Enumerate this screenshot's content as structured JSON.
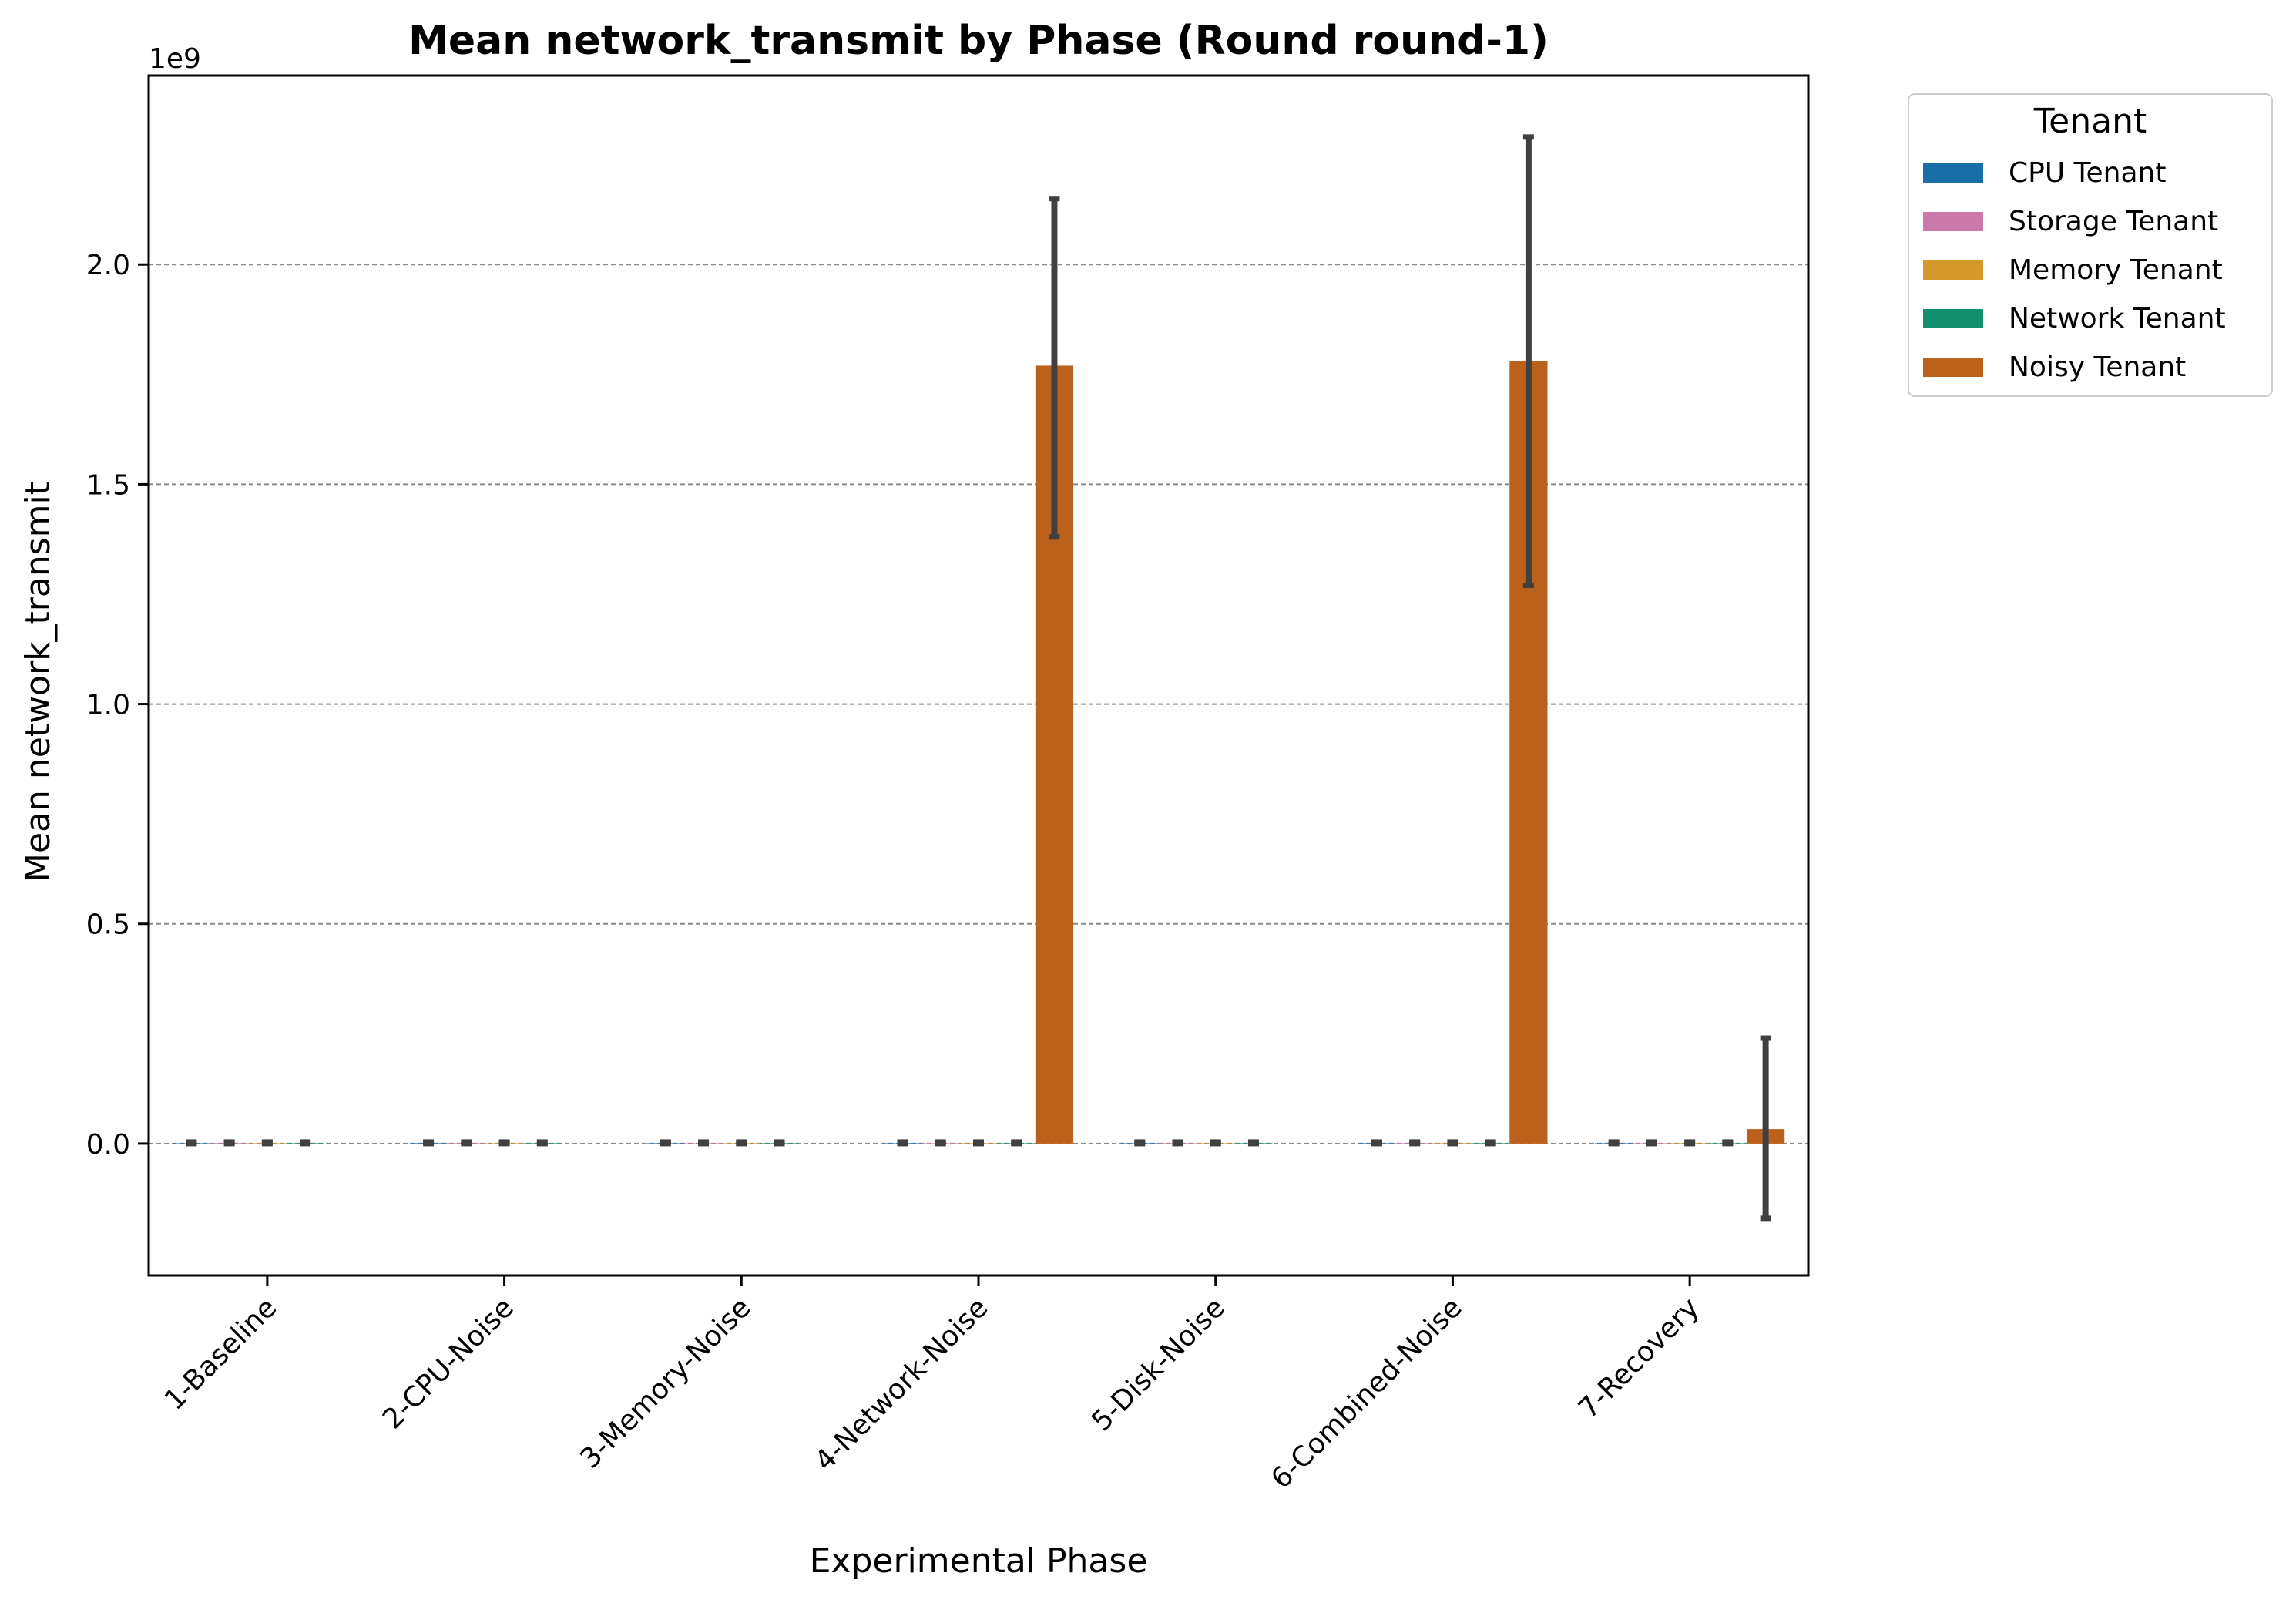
{
  "chart_data": {
    "type": "bar",
    "title": "Mean network_transmit by Phase (Round round-1)",
    "xlabel": "Experimental Phase",
    "ylabel": "Mean network_transmit",
    "y_offset_label": "1e9",
    "y_scale_factor": 1000000000,
    "ylim": [
      -0.3,
      2.43
    ],
    "yticks": [
      0.0,
      0.5,
      1.0,
      1.5,
      2.0
    ],
    "ytick_labels": [
      "0.0",
      "0.5",
      "1.0",
      "1.5",
      "2.0"
    ],
    "grid": "horizontal dashed",
    "legend_position": "outside top-right",
    "legend_title": "Tenant",
    "categories": [
      "1-Baseline",
      "2-CPU-Noise",
      "3-Memory-Noise",
      "4-Network-Noise",
      "5-Disk-Noise",
      "6-Combined-Noise",
      "7-Recovery"
    ],
    "series": [
      {
        "name": "CPU Tenant",
        "color": "#1a6fa8",
        "values": [
          0.001,
          0.001,
          0.001,
          0.001,
          0.001,
          0.001,
          0.001
        ],
        "err_low": [
          0,
          0,
          0,
          0,
          0,
          0,
          0
        ],
        "err_high": [
          0.002,
          0.002,
          0.002,
          0.002,
          0.002,
          0.002,
          0.002
        ]
      },
      {
        "name": "Storage Tenant",
        "color": "#cc78a8",
        "values": [
          0.001,
          0.001,
          0.001,
          0.001,
          0.001,
          0.001,
          0.001
        ],
        "err_low": [
          0,
          0,
          0,
          0,
          0,
          0,
          0
        ],
        "err_high": [
          0.002,
          0.002,
          0.002,
          0.002,
          0.002,
          0.002,
          0.002
        ]
      },
      {
        "name": "Memory Tenant",
        "color": "#d4992a",
        "values": [
          0.001,
          0.001,
          0.001,
          0.001,
          0.001,
          0.001,
          0.001
        ],
        "err_low": [
          0,
          0,
          0,
          0,
          0,
          0,
          0
        ],
        "err_high": [
          0.002,
          0.002,
          0.002,
          0.002,
          0.002,
          0.002,
          0.002
        ]
      },
      {
        "name": "Network Tenant",
        "color": "#128f6c",
        "values": [
          0.001,
          0.001,
          0.001,
          0.001,
          0.001,
          0.001,
          0.001
        ],
        "err_low": [
          0,
          0,
          0,
          0,
          0,
          0,
          0
        ],
        "err_high": [
          0.002,
          0.002,
          0.002,
          0.002,
          0.002,
          0.002,
          0.002
        ]
      },
      {
        "name": "Noisy Tenant",
        "color": "#bc611c",
        "values": [
          null,
          null,
          null,
          1.77,
          null,
          1.78,
          0.033
        ],
        "err_low": [
          null,
          null,
          null,
          1.38,
          null,
          1.27,
          -0.17
        ],
        "err_high": [
          null,
          null,
          null,
          2.15,
          null,
          2.29,
          0.24
        ]
      }
    ],
    "errorbar_color": "#404040"
  }
}
